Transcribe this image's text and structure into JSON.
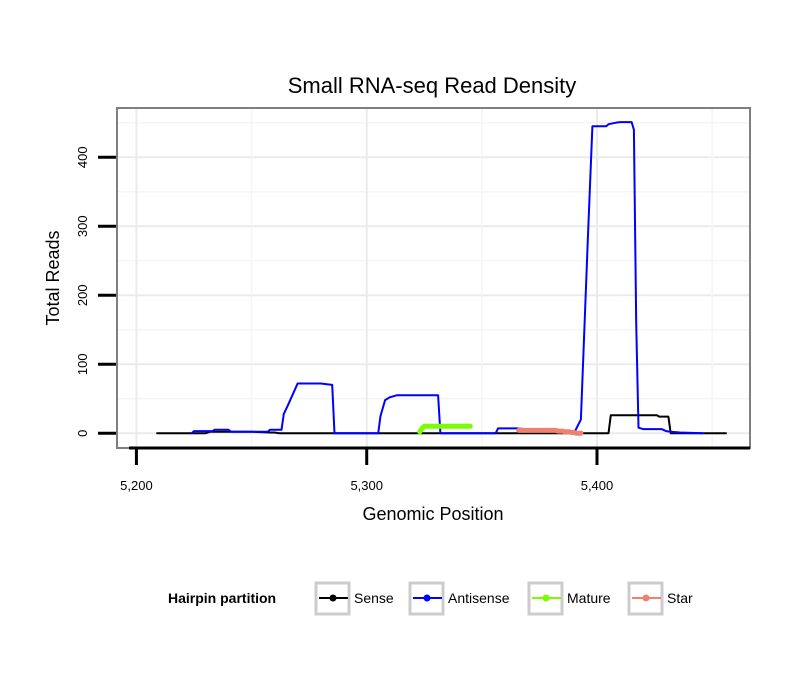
{
  "chart_data": {
    "type": "line",
    "title": "Small RNA-seq Read Density",
    "xlabel": "Genomic Position",
    "ylabel": "Total Reads",
    "xlim": [
      5192,
      5466
    ],
    "ylim": [
      -20,
      470
    ],
    "x_ticks": [
      5200,
      5300,
      5400
    ],
    "x_tick_labels": [
      "5,200",
      "5,300",
      "5,400"
    ],
    "y_ticks": [
      0,
      100,
      200,
      300,
      400
    ],
    "y_tick_labels": [
      "0",
      "100",
      "200",
      "300",
      "400"
    ],
    "grid": true,
    "legend_position": "bottom",
    "legend": {
      "title": "Hairpin partition",
      "entries": [
        {
          "name": "Sense",
          "color": "#000000"
        },
        {
          "name": "Antisense",
          "color": "#0000ff"
        },
        {
          "name": "Mature",
          "color": "#7cfc00"
        },
        {
          "name": "Star",
          "color": "#f08070"
        }
      ]
    },
    "series": [
      {
        "name": "Sense",
        "color": "#000000",
        "width": 2,
        "x": [
          5209,
          5230,
          5232,
          5250,
          5258,
          5260,
          5262,
          5300,
          5322,
          5365,
          5395,
          5405,
          5406,
          5420,
          5426,
          5427,
          5431,
          5432,
          5456
        ],
        "y": [
          0,
          0,
          2,
          2,
          1,
          1,
          0,
          0,
          0,
          0,
          0,
          0,
          26,
          26,
          26,
          24,
          24,
          0,
          0
        ]
      },
      {
        "name": "Antisense",
        "color": "#0000ff",
        "width": 2,
        "x": [
          5224,
          5225,
          5233,
          5234,
          5240,
          5241,
          5257,
          5258,
          5263,
          5264,
          5266,
          5270,
          5280,
          5285,
          5286,
          5305,
          5306,
          5308,
          5310,
          5313,
          5330,
          5331,
          5332,
          5343,
          5356,
          5357,
          5365,
          5390,
          5393,
          5396,
          5398,
          5402,
          5404,
          5405,
          5408,
          5410,
          5415,
          5416,
          5417,
          5418,
          5420,
          5428,
          5430,
          5432,
          5436,
          5446
        ],
        "y": [
          0,
          3,
          3,
          5,
          5,
          2,
          2,
          5,
          5,
          28,
          42,
          72,
          72,
          70,
          0,
          0,
          25,
          48,
          52,
          55,
          55,
          55,
          0,
          0,
          0,
          7,
          7,
          0,
          20,
          280,
          445,
          445,
          445,
          448,
          450,
          451,
          451,
          440,
          160,
          8,
          6,
          6,
          3,
          2,
          1,
          0
        ]
      },
      {
        "name": "Mature",
        "color": "#7cfc00",
        "width": 5,
        "x": [
          5323,
          5324,
          5325,
          5326,
          5327,
          5328,
          5329,
          5330,
          5331,
          5332,
          5333,
          5334,
          5335,
          5336,
          5337,
          5338,
          5339,
          5340,
          5341,
          5342,
          5343,
          5344,
          5345
        ],
        "y": [
          2,
          7,
          10,
          10,
          10,
          10,
          10,
          10,
          10,
          10,
          10,
          10,
          10,
          10,
          10,
          10,
          10,
          10,
          10,
          10,
          10,
          10,
          10
        ]
      },
      {
        "name": "Star",
        "color": "#f08070",
        "width": 5,
        "x": [
          5366,
          5367,
          5368,
          5369,
          5370,
          5371,
          5372,
          5373,
          5374,
          5375,
          5376,
          5377,
          5378,
          5379,
          5380,
          5381,
          5382,
          5383,
          5384,
          5385,
          5386,
          5387,
          5388,
          5389,
          5390,
          5391,
          5392,
          5393
        ],
        "y": [
          4,
          4,
          4,
          4,
          4,
          4,
          4,
          4,
          4,
          4,
          4,
          4,
          4,
          4,
          4,
          4,
          4,
          3,
          3,
          3,
          2,
          2,
          2,
          1,
          1,
          0,
          0,
          0
        ]
      }
    ]
  }
}
